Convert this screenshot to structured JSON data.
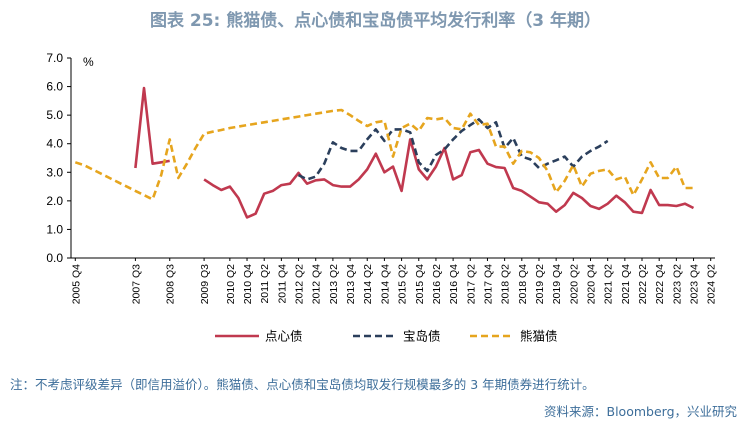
{
  "title": "图表 25: 熊猫债、点心债和宝岛债平均发行利率（3 年期）",
  "note": "注：不考虑评级差异（即信用溢价）。熊猫债、点心债和宝岛债均取发行规模最多的 3 年期债券进行统计。",
  "source": "资料来源：Bloomberg，兴业研究",
  "chart_data": {
    "type": "line",
    "title": "图表 25: 熊猫债、点心债和宝岛债平均发行利率（3 年期）",
    "y_unit_label": "%",
    "ylim": [
      0,
      7
    ],
    "yticks": [
      "0.0",
      "1.0",
      "2.0",
      "3.0",
      "4.0",
      "5.0",
      "6.0",
      "7.0"
    ],
    "grid": false,
    "legend_position": "bottom",
    "x": [
      "2005 Q4",
      "2006 Q1",
      "2006 Q2",
      "2006 Q3",
      "2006 Q4",
      "2007 Q1",
      "2007 Q2",
      "2007 Q3",
      "2007 Q4",
      "2008 Q1",
      "2008 Q2",
      "2008 Q3",
      "2008 Q4",
      "2009 Q1",
      "2009 Q2",
      "2009 Q3",
      "2009 Q4",
      "2010 Q1",
      "2010 Q2",
      "2010 Q3",
      "2010 Q4",
      "2011 Q1",
      "2011 Q2",
      "2011 Q3",
      "2011 Q4",
      "2012 Q1",
      "2012 Q2",
      "2012 Q3",
      "2012 Q4",
      "2013 Q1",
      "2013 Q2",
      "2013 Q3",
      "2013 Q4",
      "2014 Q1",
      "2014 Q2",
      "2014 Q3",
      "2014 Q4",
      "2015 Q1",
      "2015 Q2",
      "2015 Q3",
      "2015 Q4",
      "2016 Q1",
      "2016 Q2",
      "2016 Q3",
      "2016 Q4",
      "2017 Q1",
      "2017 Q2",
      "2017 Q3",
      "2017 Q4",
      "2018 Q1",
      "2018 Q2",
      "2018 Q3",
      "2018 Q4",
      "2019 Q1",
      "2019 Q2",
      "2019 Q3",
      "2019 Q4",
      "2020 Q1",
      "2020 Q2",
      "2020 Q3",
      "2020 Q4",
      "2021 Q1",
      "2021 Q2",
      "2021 Q3",
      "2021 Q4",
      "2022 Q1",
      "2022 Q2",
      "2022 Q3",
      "2022 Q4",
      "2023 Q1",
      "2023 Q2",
      "2023 Q3",
      "2023 Q4",
      "2024 Q1",
      "2024 Q2"
    ],
    "x_tick_labels": [
      "2005 Q4",
      "2007 Q3",
      "2008 Q3",
      "2009 Q3",
      "2010 Q2",
      "2010 Q4",
      "2011 Q2",
      "2011 Q4",
      "2012 Q2",
      "2012 Q4",
      "2013 Q2",
      "2013 Q4",
      "2014 Q2",
      "2014 Q4",
      "2015 Q2",
      "2015 Q4",
      "2016 Q2",
      "2016 Q4",
      "2017 Q2",
      "2017 Q4",
      "2018 Q2",
      "2018 Q4",
      "2019 Q2",
      "2019 Q4",
      "2020 Q2",
      "2020 Q4",
      "2021 Q2",
      "2021 Q4",
      "2022 Q2",
      "2022 Q4",
      "2023 Q2",
      "2023 Q4",
      "2024 Q2"
    ],
    "series": [
      {
        "name": "点心债",
        "color": "#c0394f",
        "dash": "solid",
        "values": [
          null,
          null,
          null,
          null,
          null,
          null,
          null,
          3.15,
          5.95,
          3.3,
          3.35,
          3.4,
          null,
          null,
          null,
          2.75,
          2.55,
          2.38,
          2.5,
          2.1,
          1.42,
          1.55,
          2.25,
          2.35,
          2.55,
          2.6,
          2.98,
          2.6,
          2.72,
          2.75,
          2.55,
          2.5,
          2.5,
          2.75,
          3.1,
          3.65,
          3.0,
          3.2,
          2.35,
          4.15,
          3.1,
          2.75,
          3.2,
          3.85,
          2.75,
          2.9,
          3.7,
          3.78,
          3.3,
          3.18,
          3.15,
          2.45,
          2.35,
          2.15,
          1.95,
          1.9,
          1.62,
          1.85,
          2.28,
          2.1,
          1.82,
          1.72,
          1.9,
          2.18,
          1.95,
          1.62,
          1.58,
          2.38,
          1.85,
          1.85,
          1.82,
          1.9,
          1.75,
          null,
          null
        ]
      },
      {
        "name": "宝岛债",
        "color": "#2b3f5c",
        "dash": "dashed",
        "values": [
          null,
          null,
          null,
          null,
          null,
          null,
          null,
          null,
          null,
          null,
          null,
          null,
          null,
          null,
          null,
          null,
          null,
          null,
          null,
          null,
          null,
          null,
          null,
          null,
          null,
          null,
          2.9,
          2.75,
          2.85,
          3.3,
          4.05,
          3.85,
          3.75,
          3.75,
          4.15,
          4.5,
          4.1,
          4.5,
          4.5,
          4.4,
          3.35,
          3.05,
          3.6,
          3.8,
          4.15,
          4.45,
          4.65,
          4.85,
          4.55,
          4.75,
          3.85,
          4.2,
          3.55,
          3.45,
          3.15,
          3.3,
          3.42,
          3.55,
          3.2,
          3.55,
          3.75,
          3.9,
          4.1,
          null,
          null,
          null,
          null,
          null,
          null,
          null,
          null,
          null,
          null,
          null,
          null
        ]
      },
      {
        "name": "熊猫债",
        "color": "#e6a51e",
        "dash": "dashed",
        "values": [
          3.35,
          3.25,
          3.1,
          2.95,
          2.8,
          2.65,
          2.5,
          2.35,
          2.2,
          2.05,
          2.9,
          4.15,
          2.8,
          3.3,
          3.85,
          4.35,
          4.42,
          4.48,
          4.55,
          4.6,
          4.65,
          4.7,
          4.75,
          4.8,
          4.85,
          4.9,
          4.95,
          5.0,
          5.05,
          5.1,
          5.15,
          5.18,
          5.0,
          4.8,
          4.62,
          4.75,
          4.8,
          3.55,
          4.55,
          4.7,
          4.45,
          4.9,
          4.85,
          4.9,
          4.55,
          4.5,
          5.05,
          4.65,
          4.7,
          3.9,
          3.9,
          3.3,
          3.75,
          3.7,
          3.5,
          3.05,
          2.3,
          2.7,
          3.25,
          2.5,
          2.95,
          3.05,
          3.1,
          2.75,
          2.85,
          2.2,
          2.75,
          3.35,
          2.8,
          2.8,
          3.2,
          2.45,
          2.45,
          null,
          null
        ]
      }
    ]
  }
}
